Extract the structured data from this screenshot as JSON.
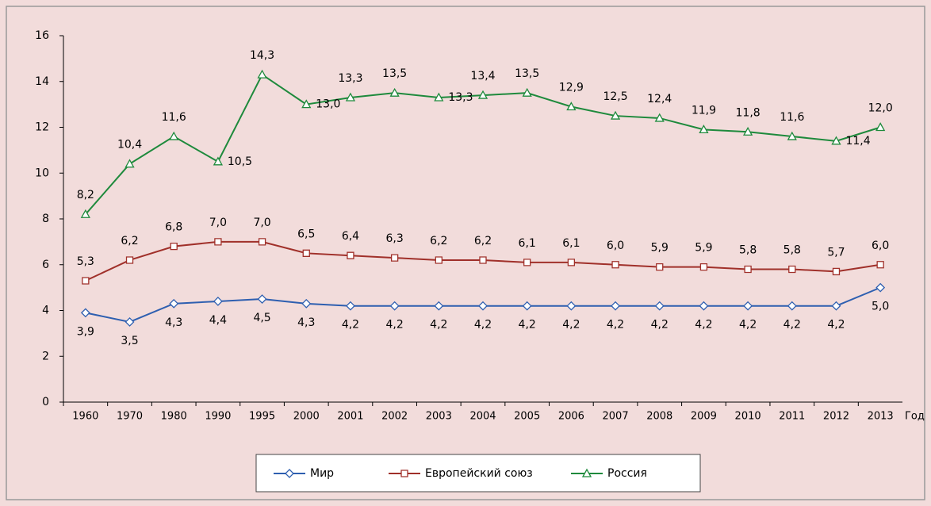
{
  "chart_data": {
    "type": "line",
    "categories": [
      "1960",
      "1970",
      "1980",
      "1990",
      "1995",
      "2000",
      "2001",
      "2002",
      "2003",
      "2004",
      "2005",
      "2006",
      "2007",
      "2008",
      "2009",
      "2010",
      "2011",
      "2012",
      "2013"
    ],
    "xlabel": "Год",
    "ylim": [
      0,
      16
    ],
    "yticks": [
      0,
      2,
      4,
      6,
      8,
      10,
      12,
      14,
      16
    ],
    "legend": "bottom",
    "series": [
      {
        "name": "Мир",
        "color": "#2e5fb0",
        "marker": "diamond",
        "values": [
          3.9,
          3.5,
          4.3,
          4.4,
          4.5,
          4.3,
          4.2,
          4.2,
          4.2,
          4.2,
          4.2,
          4.2,
          4.2,
          4.2,
          4.2,
          4.2,
          4.2,
          4.2,
          5.0
        ],
        "value_labels": [
          "3,9",
          "3,5",
          "4,3",
          "4,4",
          "4,5",
          "4,3",
          "4,2",
          "4,2",
          "4,2",
          "4,2",
          "4,2",
          "4,2",
          "4,2",
          "4,2",
          "4,2",
          "4,2",
          "4,2",
          "4,2",
          "5,0"
        ]
      },
      {
        "name": "Европейский союз",
        "color": "#a0302a",
        "marker": "square",
        "values": [
          5.3,
          6.2,
          6.8,
          7.0,
          7.0,
          6.5,
          6.4,
          6.3,
          6.2,
          6.2,
          6.1,
          6.1,
          6.0,
          5.9,
          5.9,
          5.8,
          5.8,
          5.7,
          6.0
        ],
        "value_labels": [
          "5,3",
          "6,2",
          "6,8",
          "7,0",
          "7,0",
          "6,5",
          "6,4",
          "6,3",
          "6,2",
          "6,2",
          "6,1",
          "6,1",
          "6,0",
          "5,9",
          "5,9",
          "5,8",
          "5,8",
          "5,7",
          "6,0"
        ]
      },
      {
        "name": "Россия",
        "color": "#1e8a3c",
        "marker": "triangle",
        "values": [
          8.2,
          10.4,
          11.6,
          10.5,
          14.3,
          13.0,
          13.3,
          13.5,
          13.3,
          13.4,
          13.5,
          12.9,
          12.5,
          12.4,
          11.9,
          11.8,
          11.6,
          11.4,
          12.0
        ],
        "value_labels": [
          "8,2",
          "10,4",
          "11,6",
          "10,5",
          "14,3",
          "13,0",
          "13,3",
          "13,5",
          "13,3",
          "13,4",
          "13,5",
          "12,9",
          "12,5",
          "12,4",
          "11,9",
          "11,8",
          "11,6",
          "11,4",
          "12,0"
        ]
      }
    ]
  }
}
